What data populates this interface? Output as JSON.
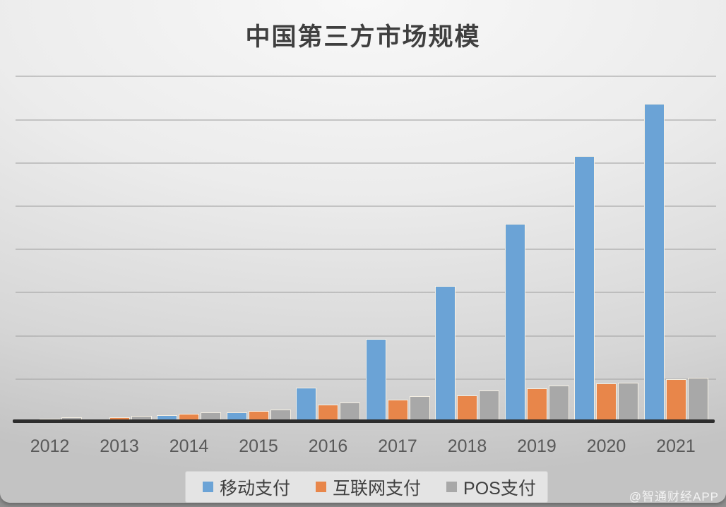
{
  "title": "中国第三方市场规模",
  "watermark": "@智通财经APP",
  "legend": [
    {
      "key": "mobile-pay",
      "label": "移动支付",
      "color": "#6ba3d6"
    },
    {
      "key": "internet-pay",
      "label": "互联网支付",
      "color": "#e8864a"
    },
    {
      "key": "pos-pay",
      "label": "POS支付",
      "color": "#a8a8a8"
    }
  ],
  "chart_data": {
    "type": "bar",
    "title": "中国第三方市场规模",
    "categories": [
      "2012",
      "2013",
      "2014",
      "2015",
      "2016",
      "2017",
      "2018",
      "2019",
      "2020",
      "2021"
    ],
    "series": [
      {
        "name": "移动支付",
        "color": "#6ba3d6",
        "values": [
          0.02,
          0.03,
          0.15,
          0.21,
          0.78,
          1.92,
          3.14,
          4.58,
          6.15,
          7.36
        ]
      },
      {
        "name": "互联网支付",
        "color": "#e8864a",
        "values": [
          0.07,
          0.1,
          0.18,
          0.24,
          0.39,
          0.5,
          0.6,
          0.77,
          0.88,
          0.98
        ]
      },
      {
        "name": "POS支付",
        "color": "#a8a8a8",
        "values": [
          0.1,
          0.13,
          0.21,
          0.28,
          0.44,
          0.59,
          0.72,
          0.83,
          0.9,
          1.01
        ]
      }
    ],
    "xlabel": "",
    "ylabel": "",
    "ylim": [
      0,
      8.07
    ],
    "y_axis_tick_labels_visible": false,
    "gridlines": "8 horizontal gridlines, one per unit interval, unlabeled",
    "legend_position": "bottom-center"
  }
}
